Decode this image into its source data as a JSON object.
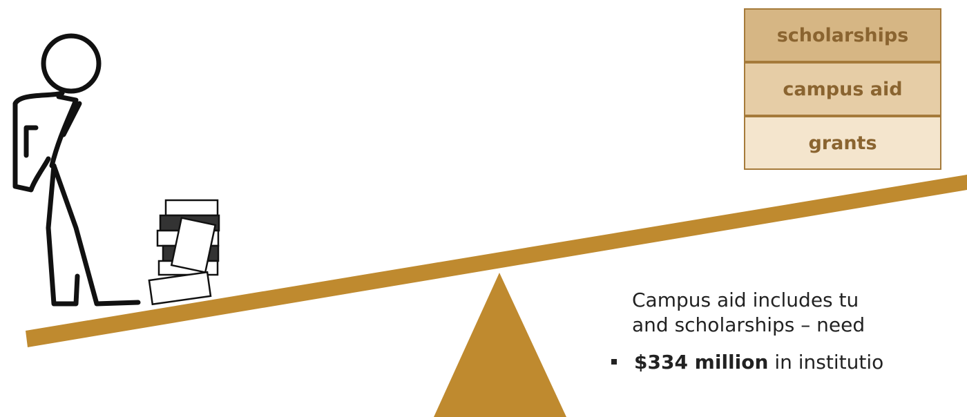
{
  "aid_stack": [
    "scholarships",
    "campus aid",
    "grants"
  ],
  "paragraph": {
    "line1": "Campus aid includes tu",
    "line2": "and scholarships – need"
  },
  "bullet": {
    "bold": "$334 million",
    "rest": " in institutio"
  }
}
